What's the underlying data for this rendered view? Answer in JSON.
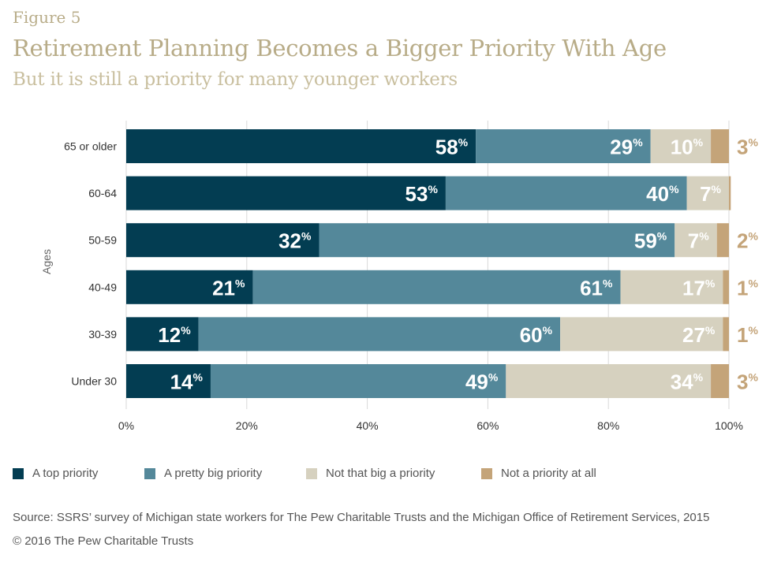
{
  "figure_label": "Figure 5",
  "title": "Retirement Planning Becomes a Bigger Priority With Age",
  "subtitle": "But it is still a priority for many younger workers",
  "source": "Source: SSRS’ survey of Michigan state workers for The Pew Charitable Trusts and the Michigan Office of Retirement Services, 2015",
  "copyright": "© 2016 The Pew Charitable Trusts",
  "legend": [
    {
      "label": "A top priority",
      "color": "#033d52"
    },
    {
      "label": "A pretty big priority",
      "color": "#54889a"
    },
    {
      "label": "Not that big a priority",
      "color": "#d6d1bf"
    },
    {
      "label": "Not a priority at all",
      "color": "#c4a479"
    }
  ],
  "chart_data": {
    "type": "bar",
    "orientation": "horizontal",
    "stacked": true,
    "ylabel": "Ages",
    "xlabel": "",
    "xlim": [
      0,
      100
    ],
    "xticks": [
      "0%",
      "20%",
      "40%",
      "60%",
      "80%",
      "100%"
    ],
    "grid": true,
    "legend_position": "bottom",
    "categories": [
      "65 or older",
      "60-64",
      "50-59",
      "40-49",
      "30-39",
      "Under 30"
    ],
    "series": [
      {
        "name": "A top priority",
        "color": "#033d52",
        "values": [
          58,
          53,
          32,
          21,
          12,
          14
        ],
        "labels": [
          "58",
          "53",
          "32",
          "21",
          "12",
          "14"
        ]
      },
      {
        "name": "A pretty big priority",
        "color": "#54889a",
        "values": [
          29,
          40,
          59,
          61,
          60,
          49
        ],
        "labels": [
          "29",
          "40",
          "59",
          "61",
          "60",
          "49"
        ]
      },
      {
        "name": "Not that big a priority",
        "color": "#d6d1bf",
        "values": [
          10,
          7,
          7,
          17,
          27,
          34
        ],
        "labels": [
          "10",
          "7",
          "7",
          "17",
          "27",
          "34"
        ]
      },
      {
        "name": "Not a priority at all",
        "color": "#c4a479",
        "values": [
          3,
          0.3,
          2,
          1,
          1,
          3
        ],
        "labels": [
          "3",
          "",
          "2",
          "1",
          "1",
          "3"
        ]
      }
    ]
  }
}
